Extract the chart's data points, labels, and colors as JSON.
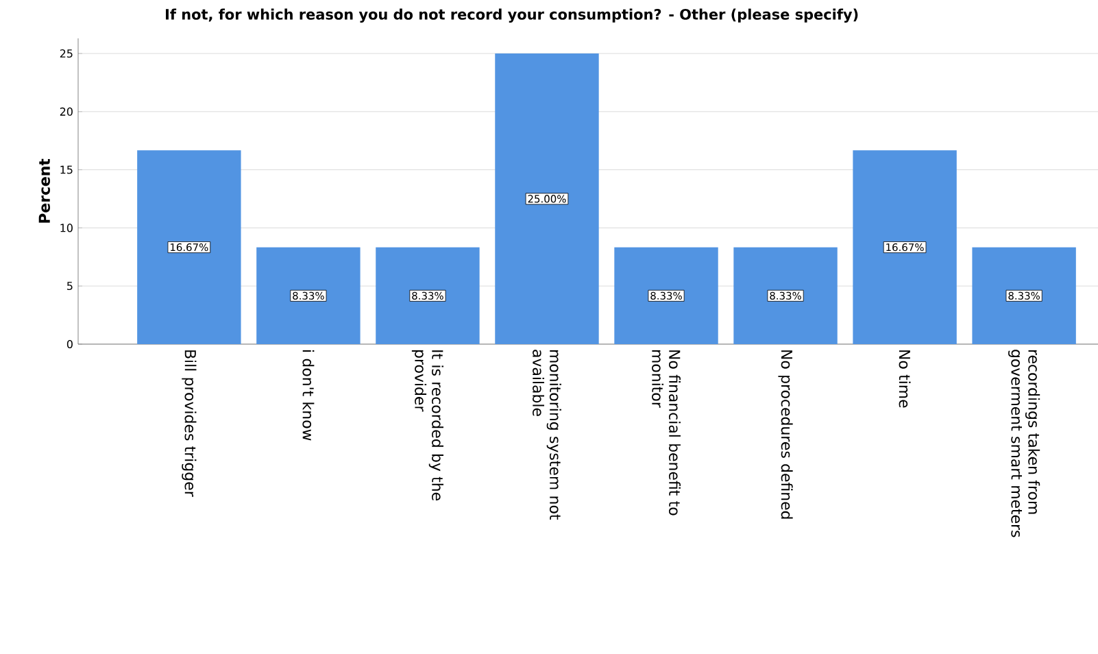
{
  "chart_data": {
    "type": "bar",
    "title": "If not, for which reason you do not record your consumption? - Other (please specify)",
    "ylabel": "Percent",
    "categories": [
      "Bill provides trigger",
      "i don't know",
      "It is recorded by the provider",
      "monitoring system not available",
      "No financial benefit to monitor",
      "No procedures defined",
      "No time",
      "recordings taken from goverment smart meters"
    ],
    "values": [
      16.67,
      8.33,
      8.33,
      25,
      8.33,
      8.33,
      16.67,
      8.33
    ],
    "value_labels": [
      "16.67%",
      "8.33%",
      "8.33%",
      "25.00%",
      "8.33%",
      "8.33%",
      "16.67%",
      "8.33%"
    ],
    "color": "#5294e2",
    "ylim": [
      0,
      26.3
    ],
    "yticks": [
      0,
      5,
      10,
      15,
      20,
      25
    ],
    "grid": "y"
  }
}
